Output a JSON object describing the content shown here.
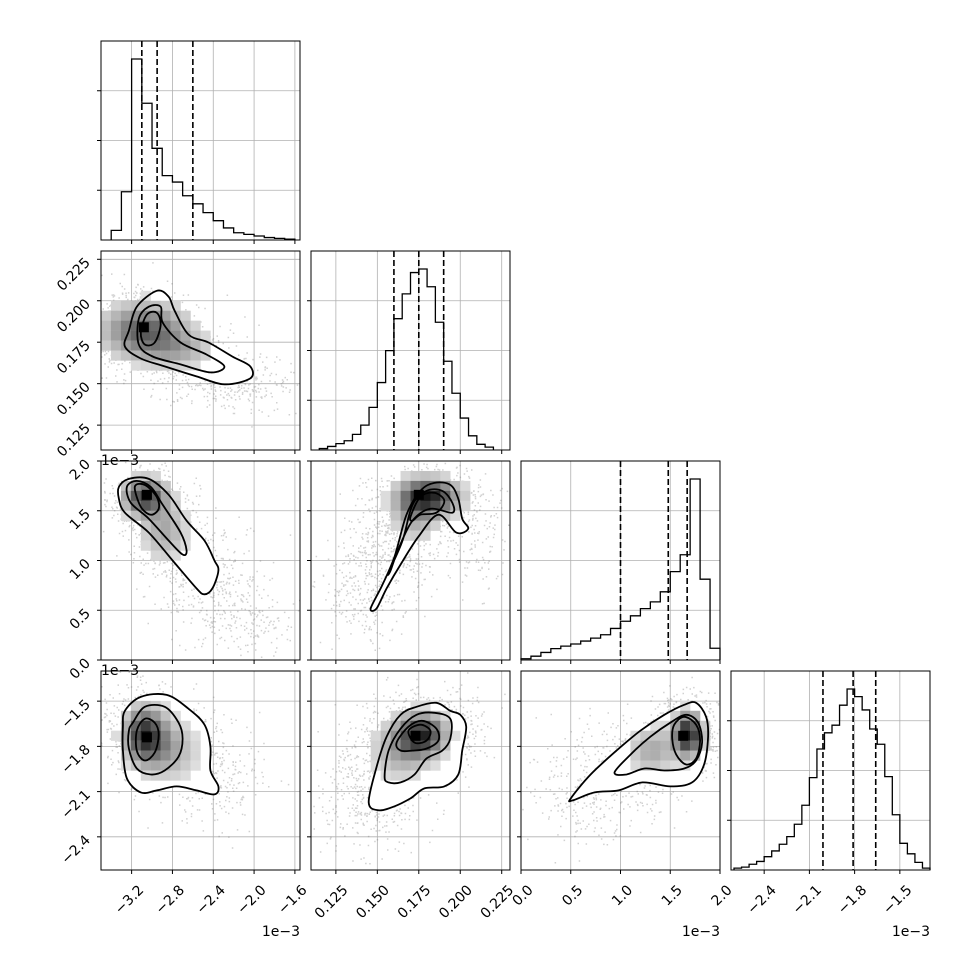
{
  "chart_data": {
    "type": "corner",
    "parameters": 4,
    "axes": [
      {
        "id": "p0",
        "range": [
          -3.5,
          -1.55
        ],
        "ticks": [
          -3.2,
          -2.8,
          -2.4,
          -2.0,
          -1.6
        ],
        "tick_labels": [
          "−3.2",
          "−2.8",
          "−2.4",
          "−2.0",
          "−1.6"
        ],
        "offset_label": "1e−3",
        "quantiles": [
          -3.1,
          -2.95,
          -2.6
        ]
      },
      {
        "id": "p1",
        "range": [
          0.11,
          0.23
        ],
        "ticks": [
          0.125,
          0.15,
          0.175,
          0.2,
          0.225
        ],
        "tick_labels": [
          "0.125",
          "0.150",
          "0.175",
          "0.200",
          "0.225"
        ],
        "offset_label": "",
        "quantiles": [
          0.16,
          0.175,
          0.19
        ]
      },
      {
        "id": "p2",
        "range": [
          0.0,
          2.0
        ],
        "ticks": [
          0.0,
          0.5,
          1.0,
          1.5,
          2.0
        ],
        "tick_labels": [
          "0.0",
          "0.5",
          "1.0",
          "1.5",
          "2.0"
        ],
        "offset_label": "1e−3",
        "quantiles": [
          1.0,
          1.48,
          1.67
        ]
      },
      {
        "id": "p3",
        "range": [
          -2.62,
          -1.3
        ],
        "ticks": [
          -2.4,
          -2.1,
          -1.8,
          -1.5
        ],
        "tick_labels": [
          "−2.4",
          "−2.1",
          "−1.8",
          "−1.5"
        ],
        "offset_label": "1e−3",
        "quantiles": [
          -2.01,
          -1.81,
          -1.66
        ]
      }
    ],
    "histograms": [
      {
        "param": "p0",
        "bin_edges": [
          -3.4,
          -3.3,
          -3.2,
          -3.1,
          -3.0,
          -2.9,
          -2.8,
          -2.7,
          -2.6,
          -2.5,
          -2.4,
          -2.3,
          -2.2,
          -2.1,
          -2.0,
          -1.9,
          -1.8,
          -1.7,
          -1.6
        ],
        "counts": [
          12,
          60,
          225,
          170,
          114,
          80,
          72,
          55,
          45,
          34,
          24,
          15,
          9,
          7,
          5,
          3,
          2,
          1
        ]
      },
      {
        "param": "p1",
        "bin_edges": [
          0.115,
          0.12,
          0.125,
          0.13,
          0.135,
          0.14,
          0.145,
          0.15,
          0.155,
          0.16,
          0.165,
          0.17,
          0.175,
          0.18,
          0.185,
          0.19,
          0.195,
          0.2,
          0.205,
          0.21,
          0.215,
          0.22
        ],
        "counts": [
          2,
          5,
          9,
          13,
          22,
          35,
          60,
          95,
          140,
          185,
          220,
          250,
          255,
          230,
          180,
          125,
          80,
          45,
          20,
          8,
          4
        ]
      },
      {
        "param": "p2",
        "bin_edges": [
          0.0,
          0.1,
          0.2,
          0.3,
          0.4,
          0.5,
          0.6,
          0.7,
          0.8,
          0.9,
          1.0,
          1.1,
          1.2,
          1.3,
          1.4,
          1.5,
          1.6,
          1.7,
          1.8,
          1.9,
          2.0
        ],
        "counts": [
          3,
          9,
          18,
          27,
          33,
          38,
          45,
          52,
          60,
          75,
          92,
          105,
          122,
          138,
          162,
          210,
          250,
          430,
          192,
          28
        ]
      },
      {
        "param": "p3",
        "bin_edges": [
          -2.6,
          -2.55,
          -2.5,
          -2.45,
          -2.4,
          -2.35,
          -2.3,
          -2.25,
          -2.2,
          -2.15,
          -2.1,
          -2.05,
          -2.0,
          -1.95,
          -1.9,
          -1.85,
          -1.8,
          -1.75,
          -1.7,
          -1.65,
          -1.6,
          -1.55,
          -1.5,
          -1.45,
          -1.4,
          -1.35,
          -1.3
        ],
        "counts": [
          2,
          3,
          6,
          9,
          14,
          20,
          27,
          35,
          48,
          68,
          97,
          127,
          144,
          152,
          173,
          190,
          182,
          168,
          148,
          132,
          98,
          58,
          28,
          17,
          8,
          2
        ]
      }
    ],
    "joint": [
      {
        "x": "p0",
        "y": "p1",
        "mode_x": -3.08,
        "mode_y": 0.184
      },
      {
        "x": "p0",
        "y": "p2",
        "mode_x": -3.05,
        "mode_y": 1.66
      },
      {
        "x": "p1",
        "y": "p2",
        "mode_x": 0.175,
        "mode_y": 1.66
      },
      {
        "x": "p0",
        "y": "p3",
        "mode_x": -3.05,
        "mode_y": -1.74
      },
      {
        "x": "p1",
        "y": "p3",
        "mode_x": 0.173,
        "mode_y": -1.73
      },
      {
        "x": "p2",
        "y": "p3",
        "mode_x": 1.63,
        "mode_y": -1.73
      }
    ]
  }
}
